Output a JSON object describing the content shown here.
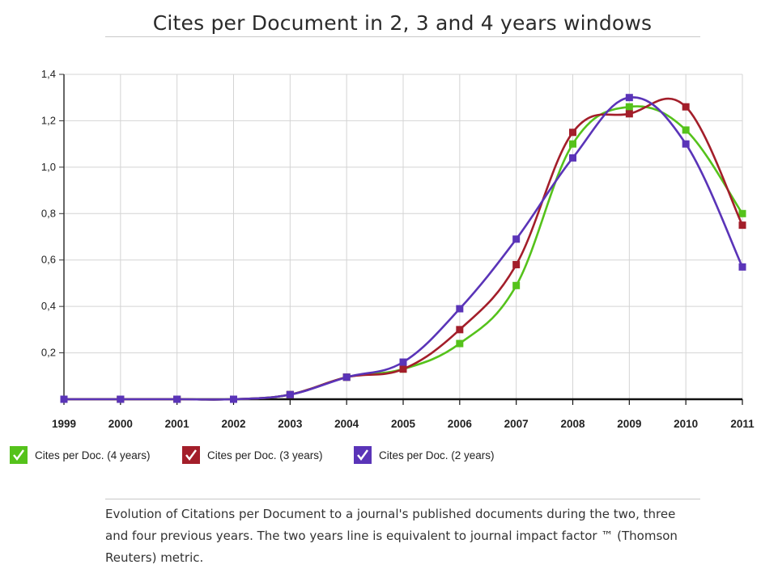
{
  "chart_data": {
    "type": "line",
    "title": "Cites per Document in 2, 3 and 4 years windows",
    "xlabel": "",
    "ylabel": "",
    "x": [
      "1999",
      "2000",
      "2001",
      "2002",
      "2003",
      "2004",
      "2005",
      "2006",
      "2007",
      "2008",
      "2009",
      "2010",
      "2011"
    ],
    "ylim": [
      0,
      1.4
    ],
    "yticks": [
      "0,2",
      "0,4",
      "0,6",
      "0,8",
      "1,0",
      "1,2",
      "1,4"
    ],
    "yticks_values": [
      0.2,
      0.4,
      0.6,
      0.8,
      1.0,
      1.2,
      1.4
    ],
    "grid": true,
    "legend_position": "bottom-left",
    "series": [
      {
        "name": "Cites per Doc. (4 years)",
        "color": "#55c21b",
        "values": [
          0,
          0,
          0,
          0,
          0.02,
          0.095,
          0.13,
          0.24,
          0.49,
          1.1,
          1.26,
          1.16,
          0.8
        ]
      },
      {
        "name": "Cites per Doc. (3 years)",
        "color": "#a31e2a",
        "values": [
          0,
          0,
          0,
          0,
          0.02,
          0.095,
          0.13,
          0.3,
          0.58,
          1.15,
          1.23,
          1.26,
          0.75
        ]
      },
      {
        "name": "Cites per Doc. (2 years)",
        "color": "#5a34b8",
        "values": [
          0,
          0,
          0,
          0,
          0.02,
          0.095,
          0.16,
          0.39,
          0.69,
          1.04,
          1.3,
          1.1,
          0.57
        ]
      }
    ]
  },
  "caption": "Evolution of Citations per Document to a journal's published documents during the two, three and four previous years. The two years line is equivalent to journal impact factor ™ (Thomson Reuters) metric."
}
